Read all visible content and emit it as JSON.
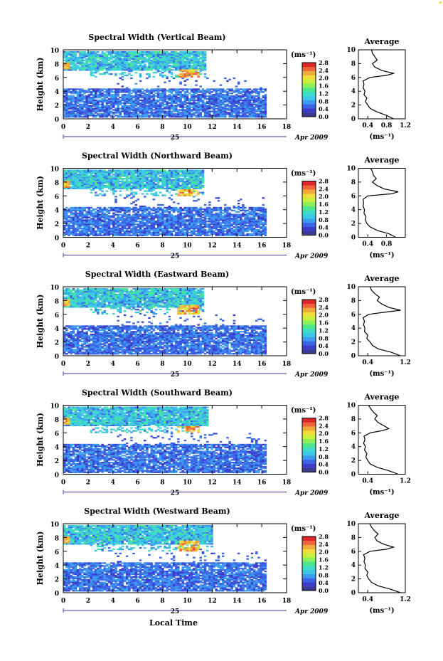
{
  "figure": {
    "bottom_xlabel": "Local Time",
    "date_label": "Apr 2009",
    "day_label": "25",
    "colorbar_unit": "(ms⁻¹)",
    "colorbar_ticks": [
      "0.0",
      "0.4",
      "0.8",
      "1.2",
      "1.6",
      "2.0",
      "2.4",
      "2.8"
    ],
    "avg_title": "Average",
    "avg_xlabel": "(ms⁻¹)"
  },
  "colors": {
    "colormap": [
      "#3a3a90",
      "#3c3cc8",
      "#3c64e6",
      "#3c9cf0",
      "#3cc8e6",
      "#3cdcc8",
      "#50e68c",
      "#8cf05a",
      "#c8f03c",
      "#f0dc3c",
      "#f0aa3c",
      "#f0643c",
      "#dc2828"
    ]
  },
  "chart_data": [
    {
      "type": "heatmap",
      "title": "Spectral Width (Vertical Beam)",
      "ylabel": "Height (km)",
      "xlim": [
        0,
        18
      ],
      "ylim": [
        0,
        10
      ],
      "xticks": [
        "0",
        "2",
        "4",
        "6",
        "8",
        "10",
        "12",
        "14",
        "16",
        "18"
      ],
      "yticks": [
        "0",
        "2",
        "4",
        "6",
        "8",
        "10"
      ],
      "upper_cloud_end_hours": 11.5,
      "data_end_hours": 16.3,
      "peak_height_km": 6.6,
      "profile": {
        "type": "line",
        "title": "Average",
        "xlim": [
          0.2,
          1.2
        ],
        "xticks": [
          "0.4",
          "0.8",
          "1.2"
        ],
        "height_km": [
          0,
          0.5,
          1,
          1.5,
          2,
          2.5,
          3,
          3.5,
          4,
          4.5,
          5,
          5.5,
          6,
          6.3,
          6.6,
          7,
          7.5,
          8,
          8.5,
          9,
          9.5,
          10
        ],
        "width_ms": [
          0.95,
          0.8,
          0.6,
          0.45,
          0.4,
          0.35,
          0.38,
          0.32,
          0.34,
          0.3,
          0.32,
          0.3,
          0.45,
          0.8,
          0.95,
          0.7,
          0.55,
          0.5,
          0.6,
          0.55,
          0.5,
          0.48
        ]
      }
    },
    {
      "type": "heatmap",
      "title": "Spectral Width (Northward Beam)",
      "ylabel": "Height (km)",
      "xlim": [
        0,
        18
      ],
      "ylim": [
        0,
        10
      ],
      "xticks": [
        "0",
        "2",
        "4",
        "6",
        "8",
        "10",
        "12",
        "14",
        "16",
        "18"
      ],
      "yticks": [
        "0",
        "2",
        "4",
        "6",
        "8",
        "10"
      ],
      "upper_cloud_end_hours": 11.2,
      "data_end_hours": 16.3,
      "peak_height_km": 6.5,
      "profile": {
        "type": "line",
        "title": "Average",
        "xlim": [
          0.2,
          1.2
        ],
        "xticks": [
          "0.4",
          "0.8"
        ],
        "height_km": [
          0,
          0.5,
          1,
          1.5,
          2,
          2.5,
          3,
          3.5,
          4,
          4.5,
          5,
          5.5,
          6,
          6.3,
          6.6,
          7,
          7.5,
          8,
          8.5,
          9,
          9.5,
          10
        ],
        "width_ms": [
          1.0,
          0.85,
          0.6,
          0.45,
          0.38,
          0.35,
          0.36,
          0.32,
          0.33,
          0.3,
          0.31,
          0.3,
          0.4,
          0.9,
          1.05,
          0.75,
          0.6,
          0.5,
          0.58,
          0.52,
          0.5,
          0.46
        ]
      }
    },
    {
      "type": "heatmap",
      "title": "Spectral Width (Eastward Beam)",
      "ylabel": "Height (km)",
      "xlim": [
        0,
        18
      ],
      "ylim": [
        0,
        10
      ],
      "xticks": [
        "0",
        "2",
        "4",
        "6",
        "8",
        "10",
        "12",
        "14",
        "16",
        "18"
      ],
      "yticks": [
        "0",
        "2",
        "4",
        "6",
        "8",
        "10"
      ],
      "upper_cloud_end_hours": 11.3,
      "data_end_hours": 16.3,
      "peak_height_km": 6.8,
      "profile": {
        "type": "line",
        "title": "Average",
        "xlim": [
          0.2,
          1.2
        ],
        "xticks": [
          "0.4",
          "1.2"
        ],
        "height_km": [
          0,
          0.5,
          1,
          1.5,
          2,
          2.5,
          3,
          3.5,
          4,
          4.5,
          5,
          5.5,
          6,
          6.3,
          6.6,
          7,
          7.5,
          8,
          8.5,
          9,
          9.5,
          10
        ],
        "width_ms": [
          1.1,
          0.9,
          0.62,
          0.5,
          0.45,
          0.38,
          0.4,
          0.33,
          0.34,
          0.31,
          0.33,
          0.3,
          0.42,
          0.75,
          1.1,
          0.85,
          0.7,
          0.6,
          0.65,
          0.55,
          0.48,
          0.45
        ]
      }
    },
    {
      "type": "heatmap",
      "title": "Spectral Width (Southward Beam)",
      "ylabel": "Height (km)",
      "xlim": [
        0,
        18
      ],
      "ylim": [
        0,
        10
      ],
      "xticks": [
        "0",
        "2",
        "4",
        "6",
        "8",
        "10",
        "12",
        "14",
        "16",
        "18"
      ],
      "yticks": [
        "0",
        "2",
        "4",
        "6",
        "8",
        "10"
      ],
      "upper_cloud_end_hours": 11.6,
      "data_end_hours": 16.3,
      "peak_height_km": 6.5,
      "profile": {
        "type": "line",
        "title": "Average",
        "xlim": [
          0.2,
          1.2
        ],
        "xticks": [
          "0.4",
          "1.2"
        ],
        "height_km": [
          0,
          0.5,
          1,
          1.5,
          2,
          2.5,
          3,
          3.5,
          4,
          4.5,
          5,
          5.5,
          6,
          6.3,
          6.6,
          7,
          7.5,
          8,
          8.5,
          9,
          9.5,
          10
        ],
        "width_ms": [
          1.05,
          0.85,
          0.6,
          0.45,
          0.4,
          0.36,
          0.38,
          0.33,
          0.35,
          0.31,
          0.34,
          0.32,
          0.45,
          0.7,
          0.85,
          0.75,
          0.62,
          0.55,
          0.6,
          0.52,
          0.46,
          0.42
        ]
      }
    },
    {
      "type": "heatmap",
      "title": "Spectral Width (Westward Beam)",
      "ylabel": "Height (km)",
      "xlabel": "Local Time",
      "xlim": [
        0,
        18
      ],
      "ylim": [
        0,
        10
      ],
      "xticks": [
        "0",
        "2",
        "4",
        "6",
        "8",
        "10",
        "12",
        "14",
        "16",
        "18"
      ],
      "yticks": [
        "0",
        "2",
        "4",
        "6",
        "8",
        "10"
      ],
      "upper_cloud_end_hours": 12.0,
      "data_end_hours": 16.3,
      "peak_height_km": 7.0,
      "profile": {
        "type": "line",
        "title": "Average",
        "xlim": [
          0.2,
          1.2
        ],
        "xticks": [
          "0.4",
          "1.2"
        ],
        "height_km": [
          0,
          0.5,
          1,
          1.5,
          2,
          2.5,
          3,
          3.5,
          4,
          4.5,
          5,
          5.5,
          6,
          6.3,
          6.6,
          7,
          7.5,
          8,
          8.5,
          9,
          9.5,
          10
        ],
        "width_ms": [
          1.1,
          0.88,
          0.62,
          0.48,
          0.42,
          0.38,
          0.4,
          0.34,
          0.35,
          0.32,
          0.34,
          0.31,
          0.45,
          0.8,
          0.95,
          0.75,
          0.6,
          0.55,
          0.62,
          0.54,
          0.48,
          0.44
        ]
      }
    }
  ]
}
